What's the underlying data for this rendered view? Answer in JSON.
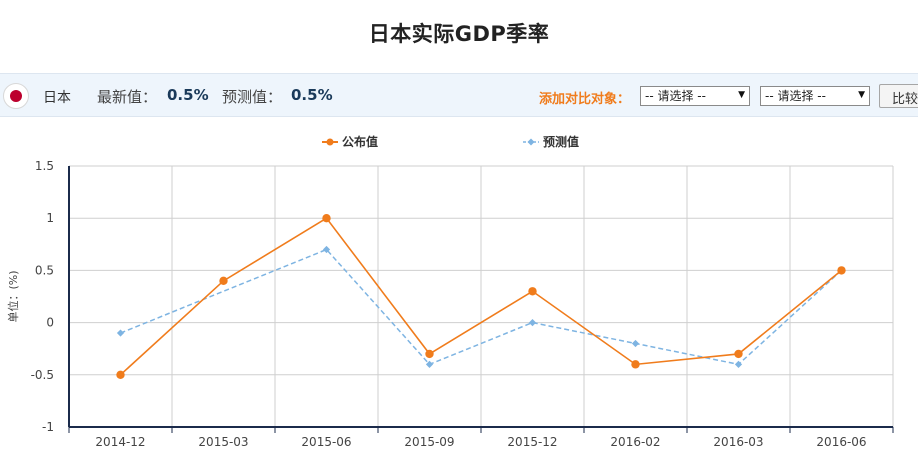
{
  "page": {
    "title": "日本实际GDP季率"
  },
  "info_bar": {
    "country": "日本",
    "latest_label": "最新值：",
    "latest_value": "0.5%",
    "forecast_label": "预测值：",
    "forecast_value": "0.5%",
    "compare_label": "添加对比对象：",
    "select_1_value": "-- 请选择 --",
    "select_2_value": "-- 请选择 --",
    "compare_button": "比较"
  },
  "colors": {
    "published": "#f07c1c",
    "forecast": "#7eb4e2",
    "axis": "#1b2b4b",
    "grid": "#cfcfcf"
  },
  "chart_data": {
    "type": "line",
    "categories": [
      "2014-12",
      "2015-03",
      "2015-06",
      "2015-09",
      "2015-12",
      "2016-02",
      "2016-03",
      "2016-06"
    ],
    "series": [
      {
        "name": "公布值",
        "values": [
          -0.5,
          0.4,
          1.0,
          -0.3,
          0.3,
          -0.4,
          -0.3,
          0.5
        ],
        "style": "solid",
        "marker": "circle",
        "color": "#f07c1c"
      },
      {
        "name": "预测值",
        "values": [
          -0.1,
          null,
          0.7,
          -0.4,
          0.0,
          -0.2,
          -0.4,
          0.5
        ],
        "style": "dashed",
        "marker": "diamond",
        "color": "#7eb4e2"
      }
    ],
    "ylim": [
      -1,
      1.5
    ],
    "yticks": [
      "1.5",
      "1",
      "0.5",
      "0",
      "-0.5",
      "-1"
    ],
    "ylabel": "单位：(%)",
    "grid": true,
    "legend_position": "top"
  }
}
